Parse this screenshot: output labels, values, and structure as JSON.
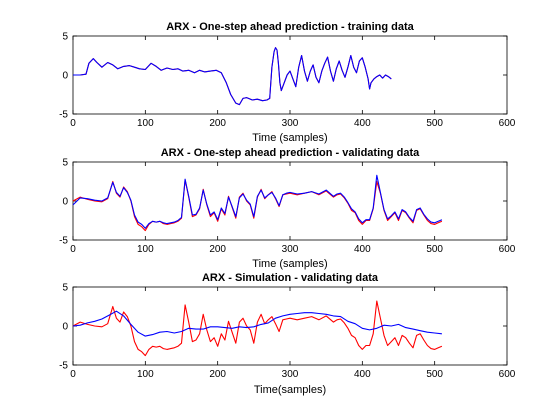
{
  "chart_data": [
    {
      "type": "line",
      "title": "ARX - One-step ahead prediction - training data",
      "xlabel": "Time (samples)",
      "ylabel": "",
      "xlim": [
        0,
        600
      ],
      "ylim": [
        -5,
        5
      ],
      "xticks": [
        0,
        100,
        200,
        300,
        400,
        500,
        600
      ],
      "yticks": [
        -5,
        0,
        5
      ],
      "colors": {
        "actual": "#ff0000",
        "predicted": "#0000ff"
      },
      "series": [
        {
          "color": "#ff0000",
          "x": [
            0,
            10,
            18,
            22,
            28,
            33,
            40,
            48,
            55,
            62,
            70,
            78,
            85,
            92,
            100,
            108,
            115,
            122,
            130,
            138,
            145,
            152,
            160,
            168,
            175,
            182,
            190,
            198,
            205,
            212,
            218,
            225,
            230,
            235,
            240,
            248,
            255,
            262,
            268,
            272,
            275,
            278,
            280,
            282,
            284,
            286,
            288,
            292,
            296,
            300,
            304,
            308,
            312,
            316,
            320,
            324,
            328,
            332,
            336,
            340,
            344,
            348,
            352,
            356,
            360,
            364,
            368,
            372,
            376,
            380,
            384,
            388,
            392,
            396,
            400,
            404,
            408,
            410,
            412,
            416,
            420,
            424,
            428,
            432,
            436,
            440
          ],
          "values": [
            0,
            0,
            0.1,
            1.5,
            2.1,
            1.6,
            1.0,
            1.6,
            1.3,
            0.8,
            1.1,
            1.2,
            1.0,
            0.8,
            0.7,
            1.5,
            1.1,
            0.6,
            0.9,
            0.7,
            0.8,
            0.5,
            0.6,
            0.3,
            0.6,
            0.4,
            0.5,
            0.6,
            0.3,
            -1.0,
            -2.5,
            -3.6,
            -3.8,
            -3.0,
            -2.9,
            -3.2,
            -3.1,
            -3.3,
            -3.2,
            -3.0,
            1.0,
            3.0,
            3.5,
            3.2,
            1.5,
            -1.0,
            -2.0,
            -1.0,
            0,
            0.5,
            -0.5,
            -1.5,
            1.0,
            2.5,
            0.5,
            -0.8,
            0.5,
            1.3,
            -0.3,
            -1.0,
            0.5,
            1.5,
            2.3,
            0.5,
            -0.8,
            0.8,
            1.8,
            0.6,
            -0.3,
            1.0,
            2.5,
            1.0,
            0.3,
            1.8,
            2.2,
            1.0,
            -0.5,
            -1.8,
            -1.0,
            -0.5,
            -0.2,
            0.0,
            -0.4,
            0.0,
            -0.2,
            -0.5
          ]
        },
        {
          "color": "#0000ff",
          "x": [
            0,
            10,
            18,
            22,
            28,
            33,
            40,
            48,
            55,
            62,
            70,
            78,
            85,
            92,
            100,
            108,
            115,
            122,
            130,
            138,
            145,
            152,
            160,
            168,
            175,
            182,
            190,
            198,
            205,
            212,
            218,
            225,
            230,
            235,
            240,
            248,
            255,
            262,
            268,
            272,
            275,
            278,
            280,
            282,
            284,
            286,
            288,
            292,
            296,
            300,
            304,
            308,
            312,
            316,
            320,
            324,
            328,
            332,
            336,
            340,
            344,
            348,
            352,
            356,
            360,
            364,
            368,
            372,
            376,
            380,
            384,
            388,
            392,
            396,
            400,
            404,
            408,
            410,
            412,
            416,
            420,
            424,
            428,
            432,
            436,
            440
          ],
          "values": [
            0,
            0,
            0.1,
            1.5,
            2.1,
            1.6,
            1.0,
            1.6,
            1.3,
            0.8,
            1.1,
            1.2,
            1.0,
            0.8,
            0.7,
            1.5,
            1.1,
            0.6,
            0.9,
            0.7,
            0.8,
            0.5,
            0.6,
            0.3,
            0.6,
            0.4,
            0.5,
            0.6,
            0.3,
            -1.0,
            -2.5,
            -3.6,
            -3.8,
            -3.0,
            -2.9,
            -3.2,
            -3.1,
            -3.3,
            -3.2,
            -3.0,
            1.0,
            3.0,
            3.5,
            3.2,
            1.5,
            -1.0,
            -2.0,
            -1.0,
            0,
            0.5,
            -0.5,
            -1.5,
            1.0,
            2.5,
            0.5,
            -0.8,
            0.5,
            1.3,
            -0.3,
            -1.0,
            0.5,
            1.5,
            2.3,
            0.5,
            -0.8,
            0.8,
            1.8,
            0.6,
            -0.3,
            1.0,
            2.5,
            1.0,
            0.3,
            1.8,
            2.2,
            1.0,
            -0.5,
            -1.8,
            -1.0,
            -0.5,
            -0.2,
            0.0,
            -0.4,
            0.0,
            -0.2,
            -0.5
          ]
        }
      ]
    },
    {
      "type": "line",
      "title": "ARX - One-step ahead prediction - validating data",
      "xlabel": "Time (samples)",
      "ylabel": "",
      "xlim": [
        0,
        600
      ],
      "ylim": [
        -5,
        5
      ],
      "xticks": [
        0,
        100,
        200,
        300,
        400,
        500,
        600
      ],
      "yticks": [
        -5,
        0,
        5
      ],
      "colors": {
        "actual": "#ff0000",
        "predicted": "#0000ff"
      },
      "series": [
        {
          "color": "#ff0000",
          "x": [
            0,
            10,
            20,
            30,
            40,
            48,
            55,
            60,
            65,
            70,
            75,
            80,
            85,
            90,
            95,
            100,
            105,
            110,
            115,
            120,
            125,
            130,
            135,
            140,
            145,
            150,
            155,
            160,
            165,
            170,
            175,
            180,
            185,
            190,
            195,
            200,
            205,
            210,
            215,
            220,
            225,
            230,
            235,
            240,
            245,
            250,
            255,
            260,
            265,
            270,
            275,
            280,
            285,
            290,
            295,
            300,
            310,
            320,
            330,
            340,
            350,
            360,
            365,
            370,
            375,
            380,
            385,
            390,
            395,
            400,
            405,
            410,
            415,
            420,
            425,
            430,
            435,
            440,
            445,
            450,
            455,
            460,
            465,
            470,
            475,
            480,
            485,
            490,
            495,
            500,
            505,
            510
          ],
          "values": [
            0,
            0.5,
            0.2,
            0.0,
            -0.1,
            0.3,
            2.5,
            1.0,
            0.5,
            1.8,
            1.2,
            0.0,
            -2.0,
            -3.0,
            -3.3,
            -3.8,
            -3.0,
            -2.6,
            -2.7,
            -2.6,
            -2.9,
            -3.0,
            -2.9,
            -2.8,
            -2.6,
            -2.2,
            2.7,
            0.5,
            -2.0,
            -1.8,
            -1.0,
            1.5,
            -0.5,
            -2.0,
            -1.5,
            -2.6,
            -1.0,
            -1.8,
            0.6,
            -0.8,
            -2.2,
            0.5,
            1.0,
            0.0,
            -0.5,
            -2.2,
            0.5,
            1.5,
            0.3,
            0.8,
            1.2,
            0.3,
            -0.7,
            0.8,
            0.9,
            1.0,
            0.8,
            1.0,
            1.2,
            0.8,
            1.3,
            0.5,
            0.8,
            0.9,
            0.4,
            -0.3,
            -1.2,
            -1.5,
            -2.5,
            -3.0,
            -2.5,
            -2.5,
            -1.0,
            2.5,
            1.0,
            -1.2,
            -2.5,
            -2.0,
            -1.5,
            -2.5,
            -1.2,
            -1.5,
            -2.2,
            -2.8,
            -1.2,
            -1.0,
            -1.8,
            -2.5,
            -2.9,
            -3.0,
            -2.8,
            -2.6
          ]
        },
        {
          "color": "#0000ff",
          "x": [
            0,
            10,
            20,
            30,
            40,
            48,
            55,
            60,
            65,
            70,
            75,
            80,
            85,
            90,
            95,
            100,
            105,
            110,
            115,
            120,
            125,
            130,
            135,
            140,
            145,
            150,
            155,
            160,
            165,
            170,
            175,
            180,
            185,
            190,
            195,
            200,
            205,
            210,
            215,
            220,
            225,
            230,
            235,
            240,
            245,
            250,
            255,
            260,
            265,
            270,
            275,
            280,
            285,
            290,
            295,
            300,
            310,
            320,
            330,
            340,
            350,
            360,
            365,
            370,
            375,
            380,
            385,
            390,
            395,
            400,
            405,
            410,
            415,
            420,
            425,
            430,
            435,
            440,
            445,
            450,
            455,
            460,
            465,
            470,
            475,
            480,
            485,
            490,
            495,
            500,
            505,
            510
          ],
          "values": [
            -0.5,
            0.4,
            0.3,
            0.1,
            0.0,
            0.4,
            2.4,
            1.1,
            0.6,
            1.7,
            1.1,
            0.1,
            -1.8,
            -2.7,
            -3.0,
            -3.5,
            -2.9,
            -2.6,
            -2.7,
            -2.6,
            -2.8,
            -2.9,
            -2.8,
            -2.7,
            -2.5,
            -2.1,
            2.8,
            0.6,
            -1.8,
            -1.7,
            -0.9,
            1.4,
            -0.4,
            -1.8,
            -1.4,
            -2.4,
            -0.9,
            -1.6,
            0.5,
            -0.7,
            -2.0,
            0.4,
            0.9,
            0.1,
            -0.4,
            -2.0,
            0.6,
            1.4,
            0.4,
            0.8,
            1.1,
            0.4,
            -0.6,
            0.8,
            1.0,
            1.1,
            0.9,
            1.0,
            1.2,
            0.9,
            1.4,
            0.6,
            0.9,
            1.0,
            0.5,
            -0.2,
            -1.0,
            -1.4,
            -2.3,
            -2.8,
            -2.4,
            -2.4,
            -0.9,
            3.3,
            1.1,
            -1.1,
            -2.3,
            -1.9,
            -1.4,
            -2.3,
            -1.1,
            -1.4,
            -2.1,
            -2.6,
            -1.1,
            -0.9,
            -1.7,
            -2.3,
            -2.7,
            -2.8,
            -2.6,
            -2.4
          ]
        }
      ]
    },
    {
      "type": "line",
      "title": "ARX - Simulation - validating data",
      "xlabel": "Time(samples)",
      "ylabel": "",
      "xlim": [
        0,
        600
      ],
      "ylim": [
        -5,
        5
      ],
      "xticks": [
        0,
        100,
        200,
        300,
        400,
        500,
        600
      ],
      "yticks": [
        -5,
        0,
        5
      ],
      "colors": {
        "actual": "#ff0000",
        "simulated": "#0000ff"
      },
      "series": [
        {
          "color": "#ff0000",
          "x": [
            0,
            10,
            20,
            30,
            40,
            48,
            55,
            60,
            65,
            70,
            75,
            80,
            85,
            90,
            95,
            100,
            105,
            110,
            115,
            120,
            125,
            130,
            135,
            140,
            145,
            150,
            155,
            160,
            165,
            170,
            175,
            180,
            185,
            190,
            195,
            200,
            205,
            210,
            215,
            220,
            225,
            230,
            235,
            240,
            245,
            250,
            255,
            260,
            265,
            270,
            275,
            280,
            285,
            290,
            295,
            300,
            310,
            320,
            330,
            340,
            350,
            360,
            365,
            370,
            375,
            380,
            385,
            390,
            395,
            400,
            405,
            410,
            415,
            420,
            425,
            430,
            435,
            440,
            445,
            450,
            455,
            460,
            465,
            470,
            475,
            480,
            485,
            490,
            495,
            500,
            505,
            510
          ],
          "values": [
            0,
            0.5,
            0.2,
            0.0,
            -0.1,
            0.3,
            2.5,
            1.0,
            0.5,
            1.8,
            1.2,
            0.0,
            -2.0,
            -3.0,
            -3.3,
            -3.8,
            -3.0,
            -2.6,
            -2.7,
            -2.6,
            -2.9,
            -3.0,
            -2.9,
            -2.8,
            -2.6,
            -2.2,
            2.7,
            0.5,
            -2.0,
            -1.8,
            -1.0,
            1.5,
            -0.5,
            -2.0,
            -1.5,
            -2.6,
            -1.0,
            -1.8,
            0.6,
            -0.8,
            -2.2,
            0.5,
            1.0,
            0.0,
            -0.5,
            -2.2,
            0.5,
            1.5,
            0.3,
            0.8,
            1.2,
            0.3,
            -0.7,
            0.8,
            0.9,
            1.0,
            0.8,
            1.0,
            1.2,
            0.8,
            1.3,
            0.5,
            0.8,
            0.9,
            0.4,
            -0.3,
            -1.2,
            -1.5,
            -2.5,
            -3.0,
            -2.5,
            -2.5,
            -1.0,
            3.2,
            1.0,
            -1.2,
            -2.5,
            -2.0,
            -1.5,
            -2.5,
            -1.2,
            -1.5,
            -2.2,
            -2.8,
            -1.2,
            -1.0,
            -1.8,
            -2.5,
            -2.9,
            -3.0,
            -2.8,
            -2.6
          ]
        },
        {
          "color": "#0000ff",
          "x": [
            0,
            10,
            20,
            30,
            40,
            50,
            60,
            70,
            80,
            90,
            100,
            110,
            120,
            130,
            140,
            150,
            160,
            170,
            180,
            190,
            200,
            210,
            220,
            230,
            240,
            250,
            260,
            270,
            280,
            290,
            300,
            310,
            320,
            330,
            340,
            350,
            360,
            370,
            380,
            390,
            400,
            410,
            420,
            430,
            440,
            450,
            460,
            470,
            480,
            490,
            500,
            510
          ],
          "values": [
            0,
            0.1,
            0.4,
            0.6,
            0.9,
            1.4,
            1.9,
            1.3,
            0.2,
            -0.8,
            -1.3,
            -1.1,
            -0.8,
            -0.7,
            -0.9,
            -0.7,
            -0.3,
            -0.4,
            -0.4,
            -0.1,
            -0.1,
            -0.2,
            -0.3,
            -0.1,
            -0.2,
            -0.1,
            0.2,
            0.4,
            1.0,
            1.3,
            1.5,
            1.6,
            1.7,
            1.7,
            1.6,
            1.5,
            1.3,
            1.2,
            0.6,
            0.3,
            -0.3,
            -0.5,
            -0.3,
            0.1,
            0.0,
            0.2,
            -0.2,
            -0.4,
            -0.6,
            -0.8,
            -0.9,
            -1.0
          ]
        }
      ]
    }
  ]
}
